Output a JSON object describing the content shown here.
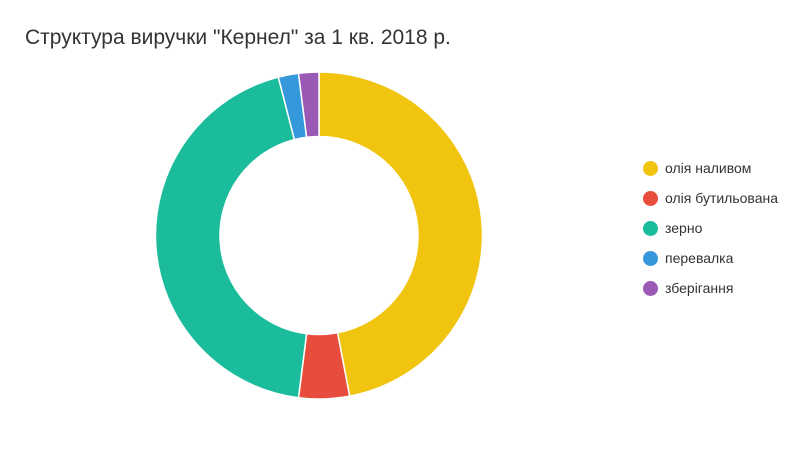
{
  "chart_data": {
    "type": "pie",
    "title": "Структура виручки \"Кернел\" за 1 кв. 2018 р.",
    "categories": [
      "олія наливом",
      "олія бутильована",
      "зерно",
      "перевалка",
      "зберігання"
    ],
    "values": [
      47.0,
      5.0,
      44.0,
      2.0,
      2.0
    ],
    "colors": [
      "#f1c40f",
      "#e74c3c",
      "#1abc9c",
      "#3498db",
      "#9b59b6"
    ],
    "donut": true,
    "legend": "right",
    "start_angle": "12 o'clock, clockwise"
  }
}
